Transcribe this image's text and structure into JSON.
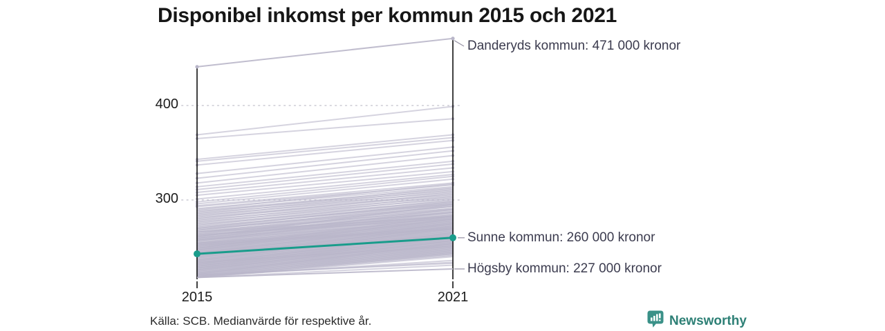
{
  "title": "Disponibel inkomst per kommun 2015 och 2021",
  "source": "Källa: SCB. Medianvärde för respektive år.",
  "branding": {
    "name": "Newsworthy",
    "logo_icon": "bar-chart-speech-bubble",
    "text_color": "#2e8076",
    "icon_color": "#3a9188"
  },
  "colors": {
    "background_line": "#b9b6c9",
    "highlight": "#199c8b",
    "axis": "#1f1f1f",
    "grid": "#d8d7de",
    "connector": "#9a97a8"
  },
  "chart_data": {
    "type": "line",
    "subtype": "slope",
    "x": [
      2015,
      2021
    ],
    "x_labels": [
      "2015",
      "2021"
    ],
    "yticks": [
      300,
      400
    ],
    "ytick_labels": [
      "300",
      "400"
    ],
    "ylim": [
      210,
      480
    ],
    "grid": "dotted-horizontal",
    "unit_hint": "tusen kronor (värden i 000 kronor)",
    "highlighted": [
      {
        "name": "Danderyds kommun",
        "values": [
          441,
          471
        ],
        "label": "Danderyds kommun: 471 000 kronor",
        "style": "gray-with-endpoints"
      },
      {
        "name": "Sunne kommun",
        "values": [
          243,
          260
        ],
        "label": "Sunne kommun: 260 000 kronor",
        "style": "teal-with-dots"
      },
      {
        "name": "Högsby kommun",
        "values": [
          218,
          227
        ],
        "label": "Högsby kommun: 227 000 kronor",
        "style": "gray"
      }
    ],
    "background_series": [
      [
        369,
        399
      ],
      [
        365,
        386
      ],
      [
        343,
        369
      ],
      [
        341,
        366
      ],
      [
        337,
        363
      ],
      [
        328,
        356
      ],
      [
        323,
        352
      ],
      [
        318,
        347
      ],
      [
        314,
        341
      ],
      [
        311,
        338
      ],
      [
        308,
        334
      ],
      [
        305,
        330
      ],
      [
        301,
        327
      ],
      [
        298,
        325
      ],
      [
        296,
        322
      ],
      [
        294,
        318
      ],
      [
        293,
        316
      ],
      [
        291,
        314
      ],
      [
        290,
        317
      ],
      [
        289,
        312
      ],
      [
        288,
        310
      ],
      [
        287,
        313
      ],
      [
        286,
        308
      ],
      [
        285,
        311
      ],
      [
        284,
        306
      ],
      [
        283,
        309
      ],
      [
        282,
        305
      ],
      [
        281,
        303
      ],
      [
        280,
        307
      ],
      [
        279,
        301
      ],
      [
        278,
        304
      ],
      [
        277,
        299
      ],
      [
        276,
        302
      ],
      [
        275,
        298
      ],
      [
        274,
        296
      ],
      [
        273,
        300
      ],
      [
        272,
        295
      ],
      [
        271,
        297
      ],
      [
        270,
        293
      ],
      [
        270,
        298
      ],
      [
        269,
        291
      ],
      [
        268,
        294
      ],
      [
        267,
        289
      ],
      [
        266,
        293
      ],
      [
        266,
        287
      ],
      [
        265,
        291
      ],
      [
        264,
        286
      ],
      [
        264,
        290
      ],
      [
        263,
        284
      ],
      [
        262,
        288
      ],
      [
        262,
        283
      ],
      [
        261,
        287
      ],
      [
        260,
        282
      ],
      [
        260,
        285
      ],
      [
        259,
        281
      ],
      [
        258,
        284
      ],
      [
        258,
        279
      ],
      [
        257,
        283
      ],
      [
        257,
        278
      ],
      [
        256,
        281
      ],
      [
        255,
        277
      ],
      [
        255,
        280
      ],
      [
        254,
        276
      ],
      [
        254,
        279
      ],
      [
        253,
        275
      ],
      [
        253,
        278
      ],
      [
        252,
        274
      ],
      [
        252,
        277
      ],
      [
        251,
        273
      ],
      [
        251,
        276
      ],
      [
        250,
        272
      ],
      [
        250,
        275
      ],
      [
        249,
        271
      ],
      [
        249,
        274
      ],
      [
        248,
        270
      ],
      [
        248,
        273
      ],
      [
        247,
        269
      ],
      [
        247,
        272
      ],
      [
        246,
        268
      ],
      [
        246,
        271
      ],
      [
        245,
        267
      ],
      [
        245,
        270
      ],
      [
        244,
        266
      ],
      [
        244,
        269
      ],
      [
        243,
        265
      ],
      [
        243,
        268
      ],
      [
        242,
        264
      ],
      [
        242,
        267
      ],
      [
        241,
        263
      ],
      [
        241,
        266
      ],
      [
        240,
        262
      ],
      [
        240,
        265
      ],
      [
        239,
        261
      ],
      [
        239,
        264
      ],
      [
        238,
        260
      ],
      [
        238,
        263
      ],
      [
        237,
        259
      ],
      [
        237,
        262
      ],
      [
        236,
        258
      ],
      [
        236,
        261
      ],
      [
        235,
        257
      ],
      [
        235,
        260
      ],
      [
        234,
        256
      ],
      [
        234,
        259
      ],
      [
        233,
        255
      ],
      [
        233,
        258
      ],
      [
        232,
        254
      ],
      [
        232,
        257
      ],
      [
        231,
        253
      ],
      [
        231,
        256
      ],
      [
        230,
        252
      ],
      [
        230,
        255
      ],
      [
        229,
        251
      ],
      [
        229,
        254
      ],
      [
        228,
        250
      ],
      [
        228,
        253
      ],
      [
        227,
        249
      ],
      [
        227,
        252
      ],
      [
        226,
        248
      ],
      [
        226,
        251
      ],
      [
        225,
        247
      ],
      [
        225,
        250
      ],
      [
        224,
        246
      ],
      [
        224,
        249
      ],
      [
        223,
        245
      ],
      [
        223,
        248
      ],
      [
        222,
        244
      ],
      [
        222,
        247
      ],
      [
        221,
        243
      ],
      [
        221,
        246
      ],
      [
        220,
        242
      ],
      [
        220,
        245
      ],
      [
        219,
        241
      ],
      [
        219,
        244
      ],
      [
        218,
        240
      ],
      [
        218,
        243
      ],
      [
        259,
        290
      ],
      [
        247,
        280
      ],
      [
        236,
        270
      ],
      [
        252,
        269
      ],
      [
        263,
        280
      ],
      [
        230,
        262
      ],
      [
        244,
        275
      ],
      [
        226,
        257
      ],
      [
        257,
        287
      ],
      [
        240,
        272
      ],
      [
        234,
        251
      ],
      [
        266,
        282
      ],
      [
        222,
        254
      ],
      [
        249,
        283
      ],
      [
        254,
        270
      ],
      [
        261,
        295
      ],
      [
        228,
        260
      ],
      [
        245,
        262
      ],
      [
        268,
        296
      ],
      [
        232,
        265
      ],
      [
        219,
        236
      ],
      [
        220,
        234
      ],
      [
        221,
        233
      ],
      [
        218,
        231
      ]
    ]
  }
}
